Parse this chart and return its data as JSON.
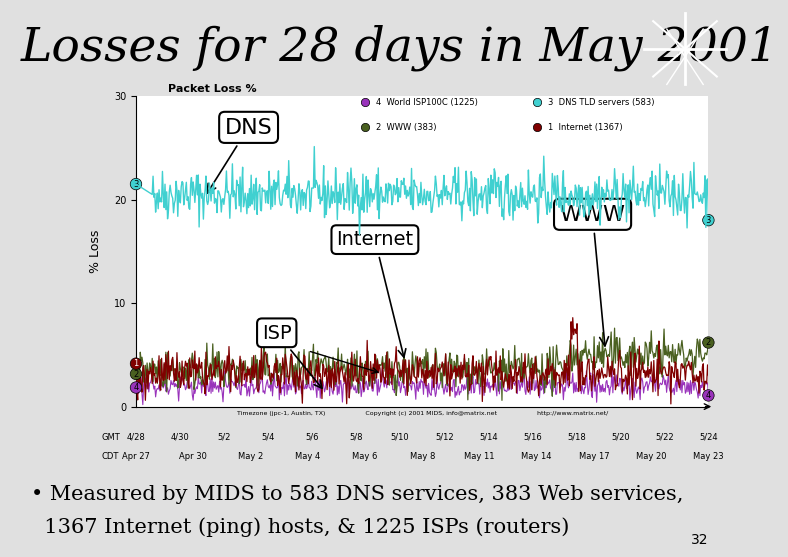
{
  "title": "Losses for 28 days in May 2001",
  "title_fontsize": 34,
  "title_color": "#000000",
  "header_bg": "#c8e8ee",
  "slide_bg": "#e0e0e0",
  "bullet_line1": "• Measured by MIDS to 583 DNS services, 383 Web services,",
  "bullet_line2": "  1367 Internet (ping) hosts, & 1225 ISPs (routers)",
  "bullet_fontsize": 15,
  "slide_number": "32",
  "chart_title": "Packet Loss %",
  "ylabel": "% Loss",
  "ylim": [
    0,
    30
  ],
  "yticks": [
    0,
    10,
    20,
    30
  ],
  "xlabel_bottom": "Timezone (jpc-1, Austin, TX)                    Copyright (c) 2001 MIDS, info@matrix.net                    http://www.matrix.net/",
  "x_labels_gmt": [
    "4/28",
    "4/30",
    "5/2",
    "5/4",
    "5/6",
    "5/8",
    "5/10",
    "5/12",
    "5/14",
    "5/16",
    "5/18",
    "5/20",
    "5/22",
    "5/24"
  ],
  "x_labels_cdt": [
    "Apr 27",
    "Apr 30",
    "May 2",
    "May 4",
    "May 6",
    "May 8",
    "May 11",
    "May 14",
    "May 17",
    "May 20",
    "May 23"
  ],
  "dns_color": "#40d0d0",
  "www_color": "#4a6020",
  "internet_color": "#800000",
  "isp_color": "#9933bb",
  "logo_bg": "#cc0000",
  "annotation_dns": "DNS",
  "annotation_www": "WWW",
  "annotation_internet": "Internet",
  "annotation_isp": "ISP",
  "legend_items": [
    {
      "label": "4  World ISP100C (1225)",
      "color": "#9933bb"
    },
    {
      "label": "3  DNS TLD servers (583)",
      "color": "#40d0d0"
    },
    {
      "label": "2  WWW (383)",
      "color": "#4a6020"
    },
    {
      "label": "1  Internet (1367)",
      "color": "#800000"
    }
  ]
}
